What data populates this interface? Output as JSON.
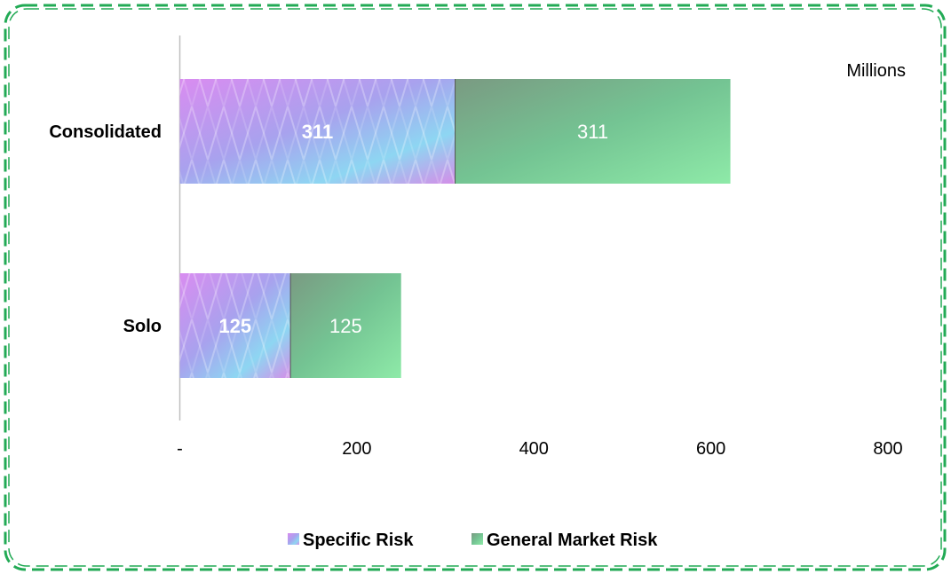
{
  "chart_data": {
    "type": "bar",
    "orientation": "horizontal",
    "stacked": true,
    "categories": [
      "Consolidated",
      "Solo"
    ],
    "series": [
      {
        "name": "Specific Risk",
        "values": [
          311,
          125
        ],
        "labels": [
          "311",
          "125"
        ],
        "color": "#b59af0"
      },
      {
        "name": "General Market Risk",
        "values": [
          311,
          125
        ],
        "labels": [
          "311",
          "125"
        ],
        "color": "#6fc99a"
      }
    ],
    "x_ticks": [
      {
        "value": 0,
        "label": "-"
      },
      {
        "value": 200,
        "label": "200"
      },
      {
        "value": 400,
        "label": "400"
      },
      {
        "value": 600,
        "label": "600"
      },
      {
        "value": 800,
        "label": "800"
      }
    ],
    "xlim": [
      0,
      800
    ],
    "unit_label": "Millions",
    "grid": false,
    "legend_position": "bottom",
    "border_color": "#22aa55"
  }
}
